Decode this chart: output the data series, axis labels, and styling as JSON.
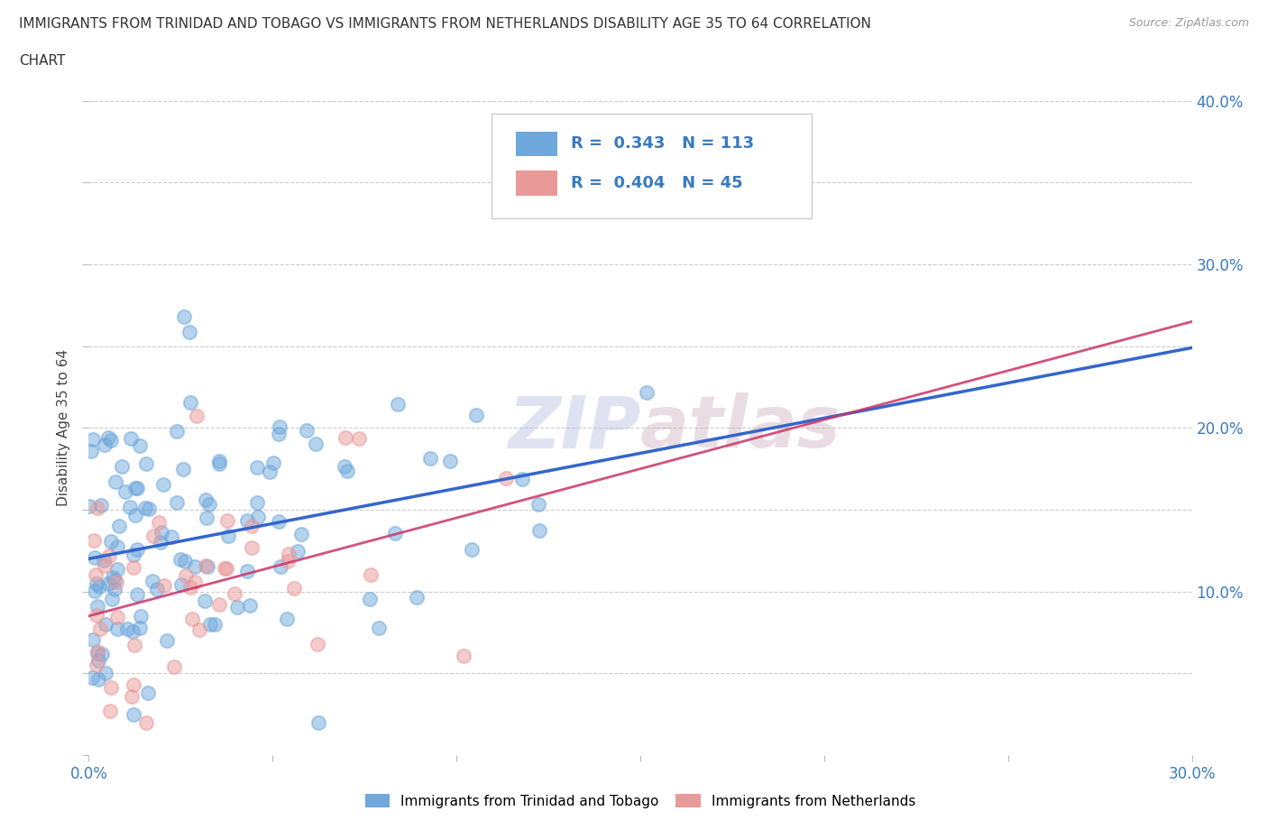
{
  "title_line1": "IMMIGRANTS FROM TRINIDAD AND TOBAGO VS IMMIGRANTS FROM NETHERLANDS DISABILITY AGE 35 TO 64 CORRELATION",
  "title_line2": "CHART",
  "source_text": "Source: ZipAtlas.com",
  "ylabel": "Disability Age 35 to 64",
  "xlim": [
    0.0,
    0.3
  ],
  "ylim": [
    0.0,
    0.4
  ],
  "x_ticks": [
    0.0,
    0.05,
    0.1,
    0.15,
    0.2,
    0.25,
    0.3
  ],
  "y_ticks": [
    0.0,
    0.05,
    0.1,
    0.15,
    0.2,
    0.25,
    0.3,
    0.35,
    0.4
  ],
  "x_tick_labels": [
    "0.0%",
    "",
    "",
    "",
    "",
    "",
    "30.0%"
  ],
  "y_tick_labels_right": [
    "",
    "",
    "10.0%",
    "",
    "20.0%",
    "",
    "30.0%",
    "",
    "40.0%"
  ],
  "trinidad_color": "#6fa8dc",
  "netherlands_color": "#ea9999",
  "trinidad_line_color": "#3366cc",
  "netherlands_line_color": "#cc3366",
  "R_trinidad": 0.343,
  "N_trinidad": 113,
  "R_netherlands": 0.404,
  "N_netherlands": 45,
  "watermark_text": "ZIPatlas",
  "background_color": "#ffffff",
  "legend_bottom_labels": [
    "Immigrants from Trinidad and Tobago",
    "Immigrants from Netherlands"
  ]
}
